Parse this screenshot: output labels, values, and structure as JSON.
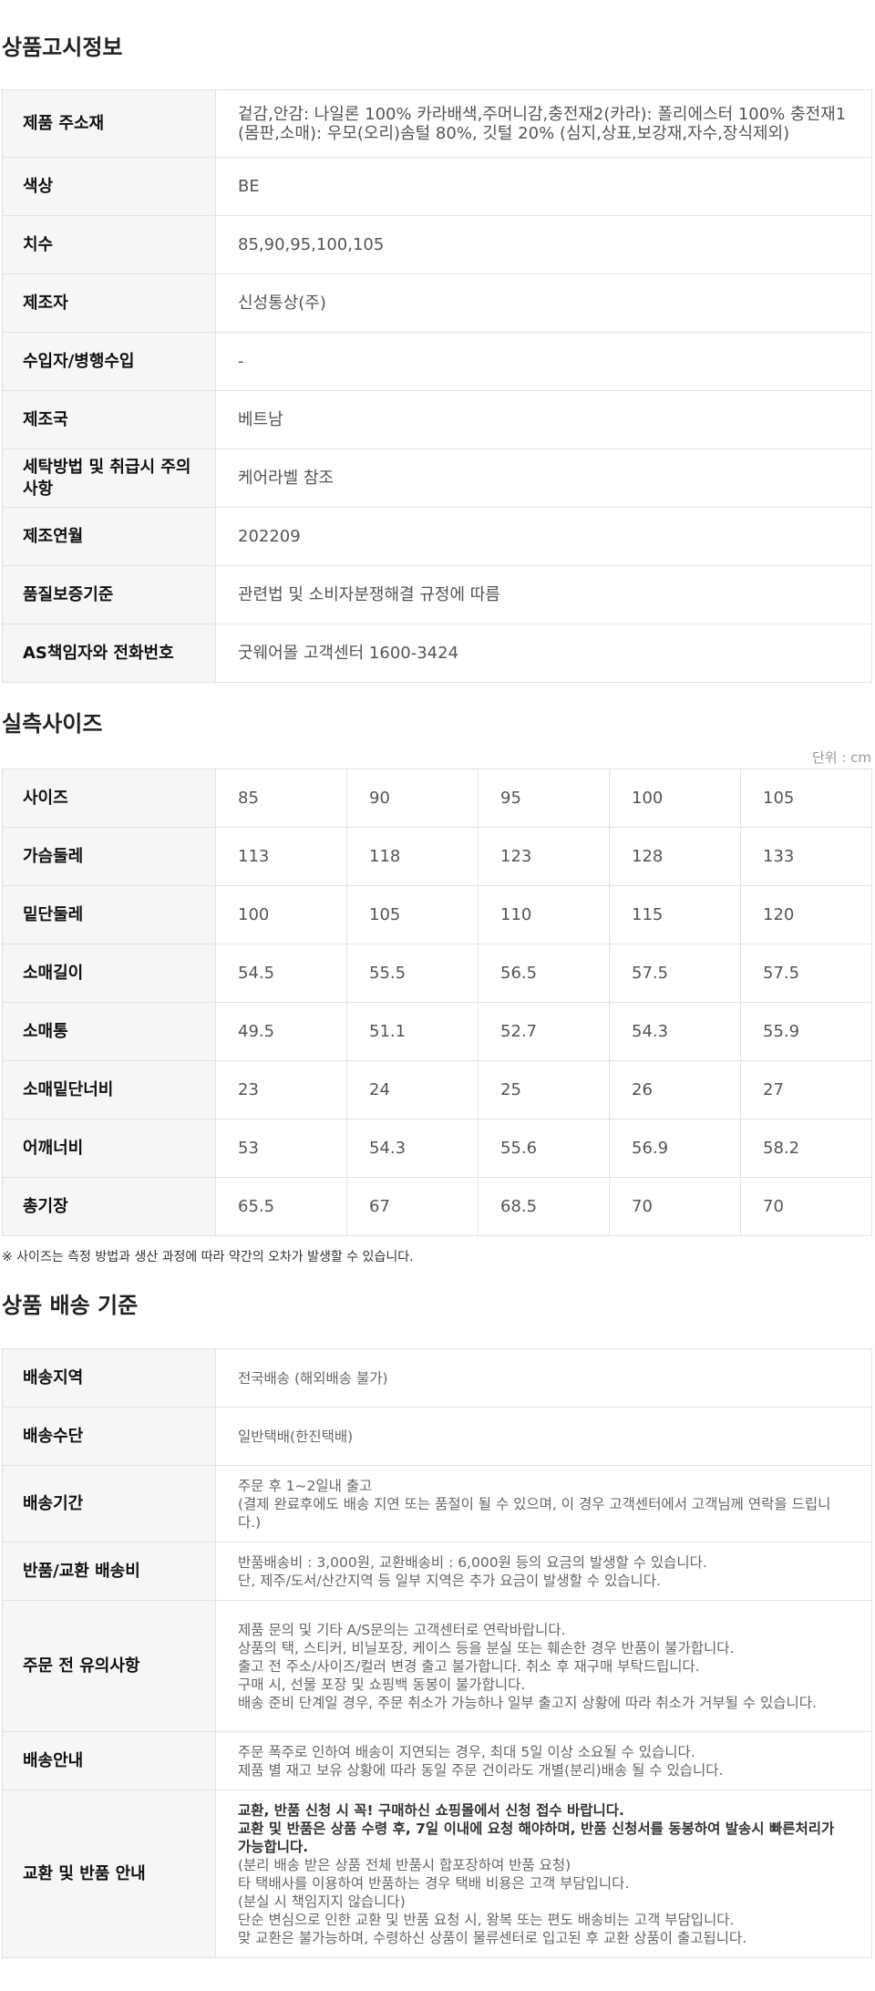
{
  "notice": {
    "title": "상품고시정보",
    "rows": [
      {
        "label": "제품 주소재",
        "value": "겉감,안감: 나일론 100% 카라배색,주머니감,충전재2(카라): 폴리에스터 100% 충전재1(몸판,소매): 우모(오리)솜털 80%, 깃털 20% (심지,상표,보강재,자수,장식제외)"
      },
      {
        "label": "색상",
        "value": "BE"
      },
      {
        "label": "치수",
        "value": "85,90,95,100,105"
      },
      {
        "label": "제조자",
        "value": "신성통상(주)"
      },
      {
        "label": "수입자/병행수입",
        "value": "-"
      },
      {
        "label": "제조국",
        "value": "베트남"
      },
      {
        "label": "세탁방법 및 취급시 주의사항",
        "value": "케어라벨 참조"
      },
      {
        "label": "제조연월",
        "value": "202209"
      },
      {
        "label": "품질보증기준",
        "value": "관련법 및 소비자분쟁해결 규정에 따름"
      },
      {
        "label": "AS책임자와 전화번호",
        "value": "굿웨어몰 고객센터 1600-3424"
      }
    ]
  },
  "size": {
    "title": "실측사이즈",
    "unit": "단위 : cm",
    "rows": [
      {
        "label": "사이즈",
        "values": [
          "85",
          "90",
          "95",
          "100",
          "105"
        ]
      },
      {
        "label": "가슴둘레",
        "values": [
          "113",
          "118",
          "123",
          "128",
          "133"
        ]
      },
      {
        "label": "밑단둘레",
        "values": [
          "100",
          "105",
          "110",
          "115",
          "120"
        ]
      },
      {
        "label": "소매길이",
        "values": [
          "54.5",
          "55.5",
          "56.5",
          "57.5",
          "57.5"
        ]
      },
      {
        "label": "소매통",
        "values": [
          "49.5",
          "51.1",
          "52.7",
          "54.3",
          "55.9"
        ]
      },
      {
        "label": "소매밑단너비",
        "values": [
          "23",
          "24",
          "25",
          "26",
          "27"
        ]
      },
      {
        "label": "어깨너비",
        "values": [
          "53",
          "54.3",
          "55.6",
          "56.9",
          "58.2"
        ]
      },
      {
        "label": "총기장",
        "values": [
          "65.5",
          "67",
          "68.5",
          "70",
          "70"
        ]
      }
    ],
    "note": "※ 사이즈는 측정 방법과 생산 과정에 따라 약간의 오차가 발생할 수 있습니다."
  },
  "shipping": {
    "title": "상품 배송 기준",
    "rows": [
      {
        "label": "배송지역",
        "lines": [
          "전국배송 (해외배송 불가)"
        ]
      },
      {
        "label": "배송수단",
        "lines": [
          "일반택배(한진택배)"
        ]
      },
      {
        "label": "배송기간",
        "lines": [
          "주문 후 1~2일내 출고",
          "(결제 완료후에도 배송 지연 또는 품절이 될 수 있으며, 이 경우 고객센터에서 고객님께 연락을 드립니다.)"
        ]
      },
      {
        "label": "반품/교환 배송비",
        "lines": [
          "반품배송비 : 3,000원, 교환배송비 : 6,000원 등의 요금의 발생할 수 있습니다.",
          "단, 제주/도서/산간지역 등 일부 지역은 추가 요금이 발생할 수 있습니다."
        ]
      },
      {
        "label": "주문 전 유의사항",
        "lines": [
          "제품 문의 및 기타 A/S문의는 고객센터로 연락바랍니다.",
          "상품의 택, 스티커, 비닐포장, 케이스 등을 분실 또는 훼손한 경우 반품이 불가합니다.",
          "출고 전 주소/사이즈/컬러 변경 출고 불가합니다. 취소 후 재구매 부탁드립니다.",
          "구매 시, 선물 포장 및 쇼핑백 동봉이 불가합니다.",
          "배송 준비 단계일 경우, 주문 취소가 가능하나 일부 출고지 상황에 따라 취소가 거부될 수 있습니다."
        ]
      },
      {
        "label": "배송안내",
        "lines": [
          "주문 폭주로 인하여 배송이 지연되는 경우, 최대 5일 이상 소요될 수 있습니다.",
          "제품 별 재고 보유 상황에 따라 동일 주문 건이라도 개별(분리)배송 될 수 있습니다."
        ]
      },
      {
        "label": "교환 및 반품 안내",
        "bold_lines": [
          "교환, 반품 신청 시 꼭! 구매하신 쇼핑몰에서 신청 접수 바랍니다.",
          "교환 및 반품은 상품 수령 후, 7일 이내에 요청 해야하며, 반품 신청서를 동봉하여 발송시 빠른처리가 가능합니다."
        ],
        "lines": [
          "(분리 배송 받은 상품 전체 반품시 합포장하여 반품 요청)",
          "타 택배사를 이용하여 반품하는 경우 택배 비용은 고객 부담입니다.",
          "(분실 시 책임지지 않습니다)",
          "단순 변심으로 인한 교환 및 반품 요청 시, 왕복 또는 편도 배송비는 고객 부담입니다.",
          "맞 교환은 불가능하며, 수령하신 상품이 물류센터로 입고된 후 교환 상품이 출고됩니다."
        ]
      }
    ]
  }
}
